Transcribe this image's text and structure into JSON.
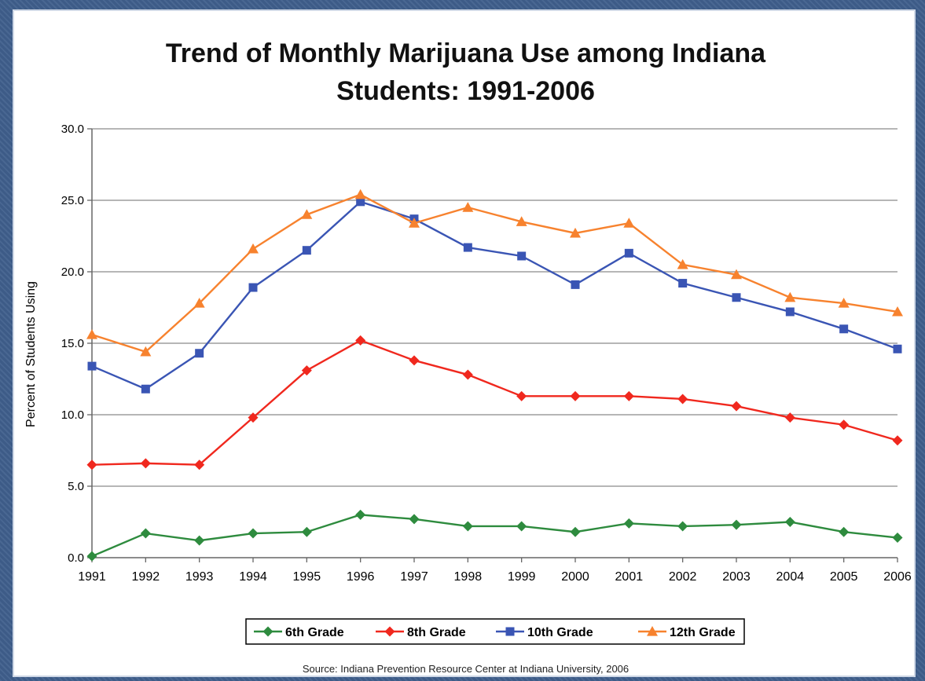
{
  "chart_data": {
    "type": "line",
    "title_line1": "Trend of Monthly Marijuana Use among Indiana",
    "title_line2": "Students: 1991-2006",
    "ylabel": "Percent of Students Using",
    "xlabel": "",
    "ylim": [
      0,
      30
    ],
    "yticks": [
      "0.0",
      "5.0",
      "10.0",
      "15.0",
      "20.0",
      "25.0",
      "30.0"
    ],
    "grid": "horizontal",
    "legend_position": "bottom",
    "categories": [
      "1991",
      "1992",
      "1993",
      "1994",
      "1995",
      "1996",
      "1997",
      "1998",
      "1999",
      "2000",
      "2001",
      "2002",
      "2003",
      "2004",
      "2005",
      "2006"
    ],
    "series": [
      {
        "name": "6th Grade",
        "color": "#2e8b3e",
        "marker": "diamond",
        "values": [
          0.1,
          1.7,
          1.2,
          1.7,
          1.8,
          3.0,
          2.7,
          2.2,
          2.2,
          1.8,
          2.4,
          2.2,
          2.3,
          2.5,
          1.8,
          1.4
        ]
      },
      {
        "name": "8th Grade",
        "color": "#f0281e",
        "marker": "diamond",
        "values": [
          6.5,
          6.6,
          6.5,
          9.8,
          13.1,
          15.2,
          13.8,
          12.8,
          11.3,
          11.3,
          11.3,
          11.1,
          10.6,
          9.8,
          9.3,
          8.2
        ]
      },
      {
        "name": "10th Grade",
        "color": "#3a55b4",
        "marker": "square",
        "values": [
          13.4,
          11.8,
          14.3,
          18.9,
          21.5,
          24.9,
          23.7,
          21.7,
          21.1,
          19.1,
          21.3,
          19.2,
          18.2,
          17.2,
          16.0,
          14.6
        ]
      },
      {
        "name": "12th Grade",
        "color": "#f7822e",
        "marker": "triangle",
        "values": [
          15.6,
          14.4,
          17.8,
          21.6,
          24.0,
          25.4,
          23.4,
          24.5,
          23.5,
          22.7,
          23.4,
          20.5,
          19.8,
          18.2,
          17.8,
          17.2
        ]
      }
    ],
    "source": "Source: Indiana Prevention Resource Center at Indiana University, 2006"
  }
}
